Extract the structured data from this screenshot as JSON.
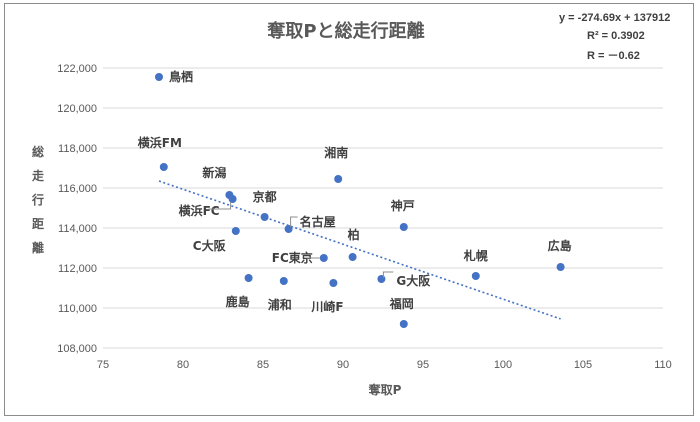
{
  "chart_data": {
    "type": "scatter",
    "title": "奪取Pと総走行距離",
    "xlabel": "奪取P",
    "ylabel": "総走行距離",
    "xlim": [
      75,
      110
    ],
    "ylim": [
      108000,
      122000
    ],
    "xticks": [
      75,
      80,
      85,
      90,
      95,
      100,
      105,
      110
    ],
    "yticks": [
      108000,
      110000,
      112000,
      114000,
      116000,
      118000,
      120000,
      122000
    ],
    "xtick_labels": [
      "75",
      "80",
      "85",
      "90",
      "95",
      "100",
      "105",
      "110"
    ],
    "ytick_labels": [
      "108,000",
      "110,000",
      "112,000",
      "114,000",
      "116,000",
      "118,000",
      "120,000",
      "122,000"
    ],
    "grid": true,
    "point_color": "#4472c4",
    "trend_color": "#4472c4",
    "points": [
      {
        "label": "鳥栖",
        "x": 78.5,
        "y": 121550
      },
      {
        "label": "横浜FM",
        "x": 78.8,
        "y": 117050
      },
      {
        "label": "新潟",
        "x": 82.9,
        "y": 115650
      },
      {
        "label": "横浜FC",
        "x": 83.1,
        "y": 115450
      },
      {
        "label": "京都",
        "x": 85.1,
        "y": 114550
      },
      {
        "label": "名古屋",
        "x": 86.6,
        "y": 113950
      },
      {
        "label": "湘南",
        "x": 89.7,
        "y": 116450
      },
      {
        "label": "神戸",
        "x": 93.8,
        "y": 114050
      },
      {
        "label": "C大阪",
        "x": 83.3,
        "y": 113850
      },
      {
        "label": "柏",
        "x": 90.6,
        "y": 112550
      },
      {
        "label": "FC東京",
        "x": 88.8,
        "y": 112500
      },
      {
        "label": "G大阪",
        "x": 92.4,
        "y": 111450
      },
      {
        "label": "札幌",
        "x": 98.3,
        "y": 111600
      },
      {
        "label": "広島",
        "x": 103.6,
        "y": 112050
      },
      {
        "label": "鹿島",
        "x": 84.1,
        "y": 111500
      },
      {
        "label": "浦和",
        "x": 86.3,
        "y": 111350
      },
      {
        "label": "川崎F",
        "x": 89.4,
        "y": 111250
      },
      {
        "label": "福岡",
        "x": 93.8,
        "y": 109200
      }
    ],
    "trendline": {
      "slope": -274.69,
      "intercept": 137912,
      "x_range": [
        78.5,
        103.6
      ]
    },
    "annotations": {
      "equation": "y = -274.69x + 137912",
      "r2": "R² = 0.3902",
      "r": "R = －0.62"
    }
  }
}
